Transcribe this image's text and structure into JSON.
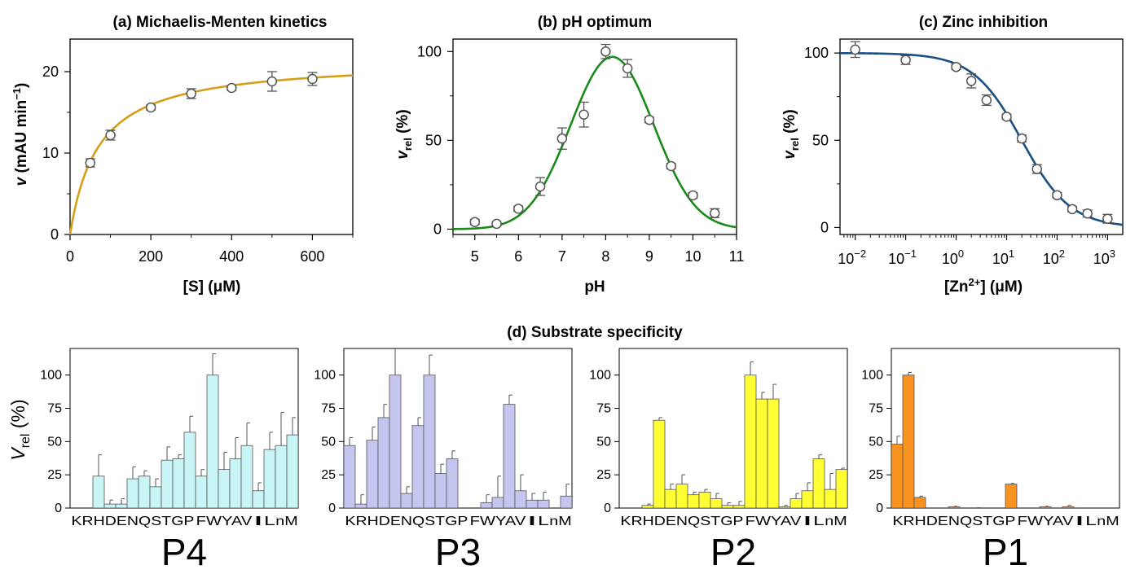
{
  "chart_data": [
    {
      "type": "scatter",
      "title": "(a) Michaelis-Menten kinetics",
      "xlabel": "[S] (μM)",
      "ylabel_main": "v",
      "ylabel_rest": " (mAU min",
      "ylabel_sup": "−1",
      "ylabel_close": ")",
      "xlim": [
        0,
        700
      ],
      "ylim": [
        0,
        24
      ],
      "xticks": [
        0,
        200,
        400,
        600
      ],
      "yticks": [
        0,
        10,
        20
      ],
      "x": [
        50,
        100,
        200,
        300,
        400,
        500,
        600
      ],
      "y": [
        8.8,
        12.2,
        15.6,
        17.3,
        18.0,
        18.8,
        19.1
      ],
      "err": [
        0.5,
        0.6,
        0.3,
        0.6,
        0.3,
        1.2,
        0.8
      ],
      "fit": {
        "model": "michaelis-menten",
        "vmax": 21.5,
        "km": 70,
        "color": "#d4a017"
      }
    },
    {
      "type": "scatter",
      "title": "(b) pH optimum",
      "xlabel": "pH",
      "ylabel_main": "v",
      "ylabel_sub": "rel",
      "ylabel_rest": " (%)",
      "xlim": [
        4.5,
        11
      ],
      "ylim": [
        -3,
        107
      ],
      "xticks": [
        5,
        6,
        7,
        8,
        9,
        10,
        11
      ],
      "yticks": [
        0,
        50,
        100
      ],
      "x": [
        5,
        5.5,
        6,
        6.5,
        7,
        7.5,
        8,
        8.5,
        9,
        9.5,
        10,
        10.5
      ],
      "y": [
        4,
        3,
        11.5,
        24,
        51,
        64.5,
        100,
        90.5,
        61.5,
        35.5,
        19,
        9
      ],
      "err": [
        1.5,
        1,
        1.5,
        5,
        6,
        7,
        4,
        5,
        1.5,
        1.5,
        1.5,
        2.5
      ],
      "fit": {
        "model": "bell",
        "amplitude": 97,
        "center": 8.15,
        "width": 0.95,
        "color": "#1a8a1a"
      }
    },
    {
      "type": "scatter",
      "title": "(c) Zinc inhibition",
      "xlabel_pre": "[Zn",
      "xlabel_sup": "2+",
      "xlabel_post": "] (μM)",
      "ylabel_main": "v",
      "ylabel_sub": "rel",
      "ylabel_rest": " (%)",
      "xscale": "log",
      "xlim": [
        0.005,
        2000
      ],
      "ylim": [
        -4,
        108
      ],
      "xticks": [
        0.01,
        0.1,
        1,
        10,
        100,
        1000
      ],
      "xtick_base": "10",
      "xtick_exps": [
        "−2",
        "−1",
        "0",
        "1",
        "2",
        "3"
      ],
      "yticks": [
        0,
        50,
        100
      ],
      "x": [
        0.01,
        0.1,
        1,
        2,
        4,
        10,
        20,
        40,
        100,
        200,
        400,
        1000
      ],
      "y": [
        102,
        96,
        92,
        84,
        73,
        63.5,
        51,
        33.5,
        18.5,
        10.5,
        8,
        5
      ],
      "err": [
        4.5,
        2.5,
        1.5,
        4,
        3,
        1.5,
        2,
        2.5,
        1.5,
        1.5,
        2,
        2.5
      ],
      "fit": {
        "model": "ic50",
        "top": 100,
        "ic50": 20,
        "hill": 0.9,
        "color": "#1a4f82"
      }
    },
    {
      "type": "bar",
      "title": "(d) Substrate specificity",
      "ylabel_main": "V",
      "ylabel_sub": "rel",
      "ylabel_rest": " (%)",
      "ylim": [
        0,
        120
      ],
      "yticks": [
        0,
        25,
        50,
        75,
        100
      ],
      "categories": [
        "K",
        "R",
        "H",
        "D",
        "E",
        "N",
        "Q",
        "S",
        "T",
        "G",
        "P",
        "F",
        "W",
        "Y",
        "A",
        "V",
        "I",
        "L",
        "n",
        "M"
      ],
      "category_labels": [
        "KRHDENQSTGP",
        "FWYAV",
        "I",
        "L",
        "nM"
      ],
      "panels": [
        {
          "name": "P4",
          "color": "#c9f5f7",
          "values": [
            0,
            0,
            24,
            3,
            3,
            22,
            24,
            16,
            36,
            37,
            57,
            24,
            100,
            29,
            37,
            47,
            13,
            44,
            47,
            55
          ],
          "err": [
            0,
            0,
            16,
            3,
            4,
            9,
            4,
            6,
            10,
            3,
            12,
            5,
            16,
            13,
            16,
            17,
            6,
            13,
            25,
            13
          ]
        },
        {
          "name": "P3",
          "color": "#c4c6f0",
          "values": [
            47,
            3,
            51,
            68,
            100,
            11,
            62,
            100,
            26,
            37,
            0,
            0,
            4,
            8,
            78,
            13,
            6,
            6,
            0,
            9
          ],
          "err": [
            6,
            7,
            10,
            10,
            30,
            5,
            6,
            15,
            7,
            6,
            0,
            0,
            6,
            16,
            7,
            12,
            5,
            6,
            0,
            9
          ]
        },
        {
          "name": "P2",
          "color": "#ffff33",
          "values": [
            0,
            0,
            2,
            66,
            14,
            18,
            10,
            12,
            7,
            2,
            2,
            100,
            82,
            82,
            1,
            7,
            13,
            37,
            14,
            29
          ],
          "err": [
            0,
            0,
            1,
            2,
            4,
            7,
            2,
            2,
            4,
            2,
            3,
            10,
            5,
            11,
            1,
            4,
            6,
            3,
            12,
            1
          ]
        },
        {
          "name": "P1",
          "color": "#f7931e",
          "values": [
            48,
            100,
            8,
            0,
            0,
            1,
            0,
            0,
            0,
            0,
            18,
            0,
            0,
            1,
            0,
            1,
            0,
            0,
            0,
            0
          ],
          "err": [
            6,
            2,
            1,
            0,
            0,
            0.3,
            0,
            0.3,
            0,
            0,
            0.5,
            0,
            0,
            0.3,
            0,
            1,
            0,
            0,
            0,
            0
          ]
        }
      ]
    }
  ]
}
